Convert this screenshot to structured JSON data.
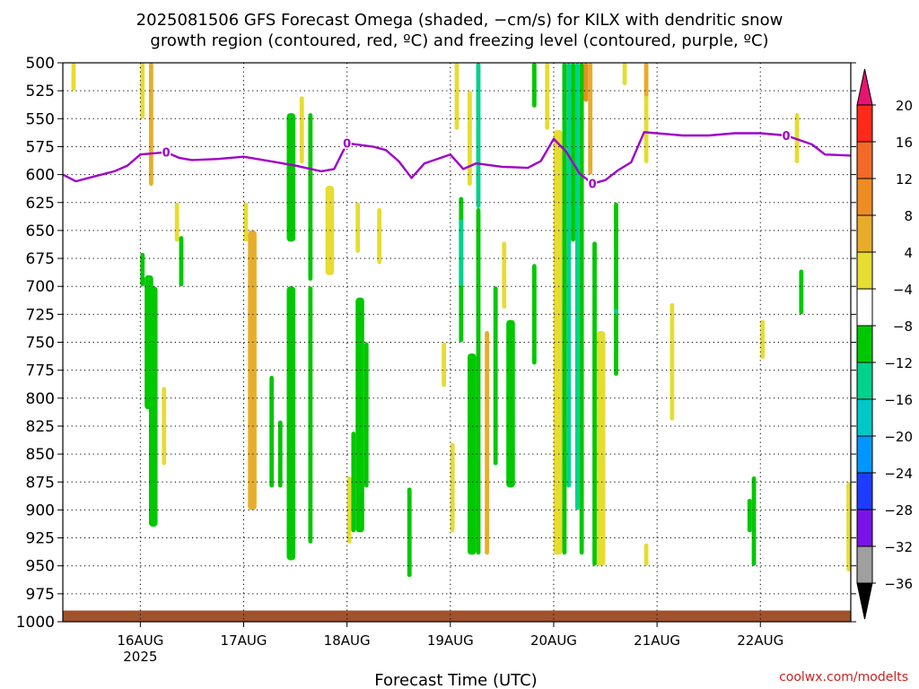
{
  "chart_data": {
    "type": "heatmap",
    "title_line1": "2025081506 GFS Forecast Omega (shaded, −cm/s) for KILX with dendritic snow",
    "title_line2": "growth region (contoured, red, ºC) and freezing level (contoured, purple, ºC)",
    "xlabel": "Forecast Time (UTC)",
    "ylabel": "",
    "credit": "coolwx.com/modelts",
    "y_ticks": [
      "500",
      "525",
      "550",
      "575",
      "600",
      "625",
      "650",
      "675",
      "700",
      "725",
      "750",
      "775",
      "800",
      "825",
      "850",
      "875",
      "900",
      "925",
      "950",
      "975",
      "1000"
    ],
    "y_range": [
      1000,
      500
    ],
    "x_start": "2025-08-15T06",
    "x_end": "2025-08-22T21",
    "x_ticks": [
      {
        "at": "2025-08-16T00",
        "label": "16AUG",
        "sublabel": "2025"
      },
      {
        "at": "2025-08-17T00",
        "label": "17AUG",
        "sublabel": ""
      },
      {
        "at": "2025-08-18T00",
        "label": "18AUG",
        "sublabel": ""
      },
      {
        "at": "2025-08-19T00",
        "label": "19AUG",
        "sublabel": ""
      },
      {
        "at": "2025-08-20T00",
        "label": "20AUG",
        "sublabel": ""
      },
      {
        "at": "2025-08-21T00",
        "label": "21AUG",
        "sublabel": ""
      },
      {
        "at": "2025-08-22T00",
        "label": "22AUG",
        "sublabel": ""
      }
    ],
    "grid": "dotted",
    "colorbar": {
      "labels": [
        "20",
        "16",
        "12",
        "8",
        "4",
        "−4",
        "−8",
        "−12",
        "−16",
        "−20",
        "−24",
        "−28",
        "−32",
        "−36"
      ],
      "colors": [
        "#ff2a1a",
        "#f36a28",
        "#ee8c24",
        "#e7ad2a",
        "#e6dc32",
        "#ffffff",
        "#00c800",
        "#00d28c",
        "#00c8c8",
        "#0096ff",
        "#1e3cff",
        "#7814e6",
        "#a000c8",
        "#a0a0a0"
      ],
      "top_arrow_color": "#e6146e",
      "bottom_arrow_color": "#000000"
    },
    "freezing_level": {
      "color": "#a000c8",
      "label": "0",
      "points": [
        [
          "2025-08-15T06",
          600
        ],
        [
          "2025-08-15T09",
          606
        ],
        [
          "2025-08-15T12",
          603
        ],
        [
          "2025-08-15T18",
          597
        ],
        [
          "2025-08-15T21",
          592
        ],
        [
          "2025-08-16T00",
          582
        ],
        [
          "2025-08-16T06",
          580
        ],
        [
          "2025-08-16T09",
          585
        ],
        [
          "2025-08-16T12",
          587
        ],
        [
          "2025-08-16T18",
          586
        ],
        [
          "2025-08-17T00",
          584
        ],
        [
          "2025-08-17T06",
          588
        ],
        [
          "2025-08-17T12",
          592
        ],
        [
          "2025-08-17T18",
          597
        ],
        [
          "2025-08-17T21",
          595
        ],
        [
          "2025-08-18T00",
          572
        ],
        [
          "2025-08-18T06",
          575
        ],
        [
          "2025-08-18T09",
          578
        ],
        [
          "2025-08-18T12",
          588
        ],
        [
          "2025-08-18T15",
          603
        ],
        [
          "2025-08-18T18",
          590
        ],
        [
          "2025-08-19T00",
          582
        ],
        [
          "2025-08-19T03",
          595
        ],
        [
          "2025-08-19T06",
          590
        ],
        [
          "2025-08-19T12",
          593
        ],
        [
          "2025-08-19T18",
          594
        ],
        [
          "2025-08-19T21",
          588
        ],
        [
          "2025-08-20T00",
          568
        ],
        [
          "2025-08-20T03",
          580
        ],
        [
          "2025-08-20T06",
          599
        ],
        [
          "2025-08-20T09",
          608
        ],
        [
          "2025-08-20T12",
          605
        ],
        [
          "2025-08-20T15",
          596
        ],
        [
          "2025-08-20T18",
          589
        ],
        [
          "2025-08-20T21",
          562
        ],
        [
          "2025-08-21T06",
          565
        ],
        [
          "2025-08-21T12",
          565
        ],
        [
          "2025-08-21T18",
          563
        ],
        [
          "2025-08-22T00",
          563
        ],
        [
          "2025-08-22T06",
          565
        ],
        [
          "2025-08-22T12",
          573
        ],
        [
          "2025-08-22T15",
          582
        ],
        [
          "2025-08-22T21",
          583
        ]
      ]
    },
    "omega_regions": [
      {
        "start": "2025-08-15T08",
        "end": "2025-08-15T09",
        "top": 500,
        "bottom": 525,
        "value": 4
      },
      {
        "start": "2025-08-16T00",
        "end": "2025-08-16T01",
        "top": 500,
        "bottom": 550,
        "value": 4
      },
      {
        "start": "2025-08-16T02",
        "end": "2025-08-16T03",
        "top": 500,
        "bottom": 610,
        "value": 8
      },
      {
        "start": "2025-08-16T00",
        "end": "2025-08-16T01",
        "top": 670,
        "bottom": 700,
        "value": -8
      },
      {
        "start": "2025-08-16T01",
        "end": "2025-08-16T03",
        "top": 690,
        "bottom": 810,
        "value": -8
      },
      {
        "start": "2025-08-16T02",
        "end": "2025-08-16T04",
        "top": 700,
        "bottom": 915,
        "value": -8
      },
      {
        "start": "2025-08-16T05",
        "end": "2025-08-16T06",
        "top": 790,
        "bottom": 860,
        "value": 4
      },
      {
        "start": "2025-08-16T08",
        "end": "2025-08-16T09",
        "top": 625,
        "bottom": 660,
        "value": 4
      },
      {
        "start": "2025-08-16T09",
        "end": "2025-08-16T10",
        "top": 655,
        "bottom": 700,
        "value": -8
      },
      {
        "start": "2025-08-17T00",
        "end": "2025-08-17T01",
        "top": 625,
        "bottom": 660,
        "value": 4
      },
      {
        "start": "2025-08-17T01",
        "end": "2025-08-17T03",
        "top": 650,
        "bottom": 900,
        "value": 8
      },
      {
        "start": "2025-08-17T06",
        "end": "2025-08-17T07",
        "top": 780,
        "bottom": 880,
        "value": -8
      },
      {
        "start": "2025-08-17T08",
        "end": "2025-08-17T09",
        "top": 820,
        "bottom": 880,
        "value": -8
      },
      {
        "start": "2025-08-17T10",
        "end": "2025-08-17T12",
        "top": 545,
        "bottom": 660,
        "value": -8
      },
      {
        "start": "2025-08-17T10",
        "end": "2025-08-17T12",
        "top": 700,
        "bottom": 945,
        "value": -8
      },
      {
        "start": "2025-08-17T13",
        "end": "2025-08-17T14",
        "top": 530,
        "bottom": 590,
        "value": 4
      },
      {
        "start": "2025-08-17T15",
        "end": "2025-08-17T16",
        "top": 545,
        "bottom": 695,
        "value": -8
      },
      {
        "start": "2025-08-17T15",
        "end": "2025-08-17T16",
        "top": 700,
        "bottom": 930,
        "value": -8
      },
      {
        "start": "2025-08-17T19",
        "end": "2025-08-17T21",
        "top": 610,
        "bottom": 690,
        "value": 4
      },
      {
        "start": "2025-08-18T00",
        "end": "2025-08-18T01",
        "top": 870,
        "bottom": 930,
        "value": 4
      },
      {
        "start": "2025-08-18T01",
        "end": "2025-08-18T02",
        "top": 830,
        "bottom": 920,
        "value": -8
      },
      {
        "start": "2025-08-18T02",
        "end": "2025-08-18T04",
        "top": 710,
        "bottom": 920,
        "value": -8
      },
      {
        "start": "2025-08-18T04",
        "end": "2025-08-18T05",
        "top": 750,
        "bottom": 880,
        "value": -8
      },
      {
        "start": "2025-08-18T02",
        "end": "2025-08-18T03",
        "top": 625,
        "bottom": 670,
        "value": 4
      },
      {
        "start": "2025-08-18T07",
        "end": "2025-08-18T08",
        "top": 630,
        "bottom": 680,
        "value": 4
      },
      {
        "start": "2025-08-18T14",
        "end": "2025-08-18T15",
        "top": 880,
        "bottom": 960,
        "value": -8
      },
      {
        "start": "2025-08-18T22",
        "end": "2025-08-18T23",
        "top": 750,
        "bottom": 790,
        "value": 4
      },
      {
        "start": "2025-08-19T00",
        "end": "2025-08-19T01",
        "top": 840,
        "bottom": 920,
        "value": 4
      },
      {
        "start": "2025-08-19T01",
        "end": "2025-08-19T02",
        "top": 500,
        "bottom": 560,
        "value": 4
      },
      {
        "start": "2025-08-19T02",
        "end": "2025-08-19T03",
        "top": 620,
        "bottom": 750,
        "value": -8
      },
      {
        "start": "2025-08-19T02",
        "end": "2025-08-19T03",
        "top": 640,
        "bottom": 700,
        "value": -12
      },
      {
        "start": "2025-08-19T04",
        "end": "2025-08-19T05",
        "top": 525,
        "bottom": 610,
        "value": 4
      },
      {
        "start": "2025-08-19T04",
        "end": "2025-08-19T06",
        "top": 760,
        "bottom": 940,
        "value": -8
      },
      {
        "start": "2025-08-19T06",
        "end": "2025-08-19T07",
        "top": 500,
        "bottom": 630,
        "value": -12
      },
      {
        "start": "2025-08-19T06",
        "end": "2025-08-19T07",
        "top": 630,
        "bottom": 940,
        "value": -8
      },
      {
        "start": "2025-08-19T08",
        "end": "2025-08-19T09",
        "top": 740,
        "bottom": 940,
        "value": 8
      },
      {
        "start": "2025-08-19T10",
        "end": "2025-08-19T11",
        "top": 700,
        "bottom": 860,
        "value": -8
      },
      {
        "start": "2025-08-19T12",
        "end": "2025-08-19T13",
        "top": 660,
        "bottom": 720,
        "value": 4
      },
      {
        "start": "2025-08-19T13",
        "end": "2025-08-19T15",
        "top": 730,
        "bottom": 880,
        "value": -8
      },
      {
        "start": "2025-08-19T19",
        "end": "2025-08-19T20",
        "top": 500,
        "bottom": 540,
        "value": -8
      },
      {
        "start": "2025-08-19T19",
        "end": "2025-08-19T20",
        "top": 680,
        "bottom": 770,
        "value": -8
      },
      {
        "start": "2025-08-19T22",
        "end": "2025-08-19T23",
        "top": 500,
        "bottom": 560,
        "value": 4
      },
      {
        "start": "2025-08-20T00",
        "end": "2025-08-20T02",
        "top": 560,
        "bottom": 940,
        "value": 4
      },
      {
        "start": "2025-08-20T02",
        "end": "2025-08-20T03",
        "top": 500,
        "bottom": 940,
        "value": -8
      },
      {
        "start": "2025-08-20T03",
        "end": "2025-08-20T04",
        "top": 500,
        "bottom": 880,
        "value": -12
      },
      {
        "start": "2025-08-20T04",
        "end": "2025-08-20T05",
        "top": 500,
        "bottom": 660,
        "value": -8
      },
      {
        "start": "2025-08-20T05",
        "end": "2025-08-20T06",
        "top": 500,
        "bottom": 900,
        "value": -12
      },
      {
        "start": "2025-08-20T06",
        "end": "2025-08-20T07",
        "top": 500,
        "bottom": 940,
        "value": -8
      },
      {
        "start": "2025-08-20T07",
        "end": "2025-08-20T08",
        "top": 500,
        "bottom": 535,
        "value": 12
      },
      {
        "start": "2025-08-20T08",
        "end": "2025-08-20T09",
        "top": 500,
        "bottom": 600,
        "value": 8
      },
      {
        "start": "2025-08-20T09",
        "end": "2025-08-20T10",
        "top": 660,
        "bottom": 950,
        "value": -8
      },
      {
        "start": "2025-08-20T10",
        "end": "2025-08-20T12",
        "top": 740,
        "bottom": 950,
        "value": 4
      },
      {
        "start": "2025-08-20T14",
        "end": "2025-08-20T15",
        "top": 625,
        "bottom": 780,
        "value": -8
      },
      {
        "start": "2025-08-20T14",
        "end": "2025-08-20T15",
        "top": 720,
        "bottom": 725,
        "value": -12
      },
      {
        "start": "2025-08-20T16",
        "end": "2025-08-20T17",
        "top": 500,
        "bottom": 520,
        "value": 4
      },
      {
        "start": "2025-08-20T21",
        "end": "2025-08-20T22",
        "top": 500,
        "bottom": 590,
        "value": 4
      },
      {
        "start": "2025-08-20T21",
        "end": "2025-08-20T22",
        "top": 500,
        "bottom": 530,
        "value": 8
      },
      {
        "start": "2025-08-20T21",
        "end": "2025-08-20T22",
        "top": 930,
        "bottom": 950,
        "value": 4
      },
      {
        "start": "2025-08-21T03",
        "end": "2025-08-21T04",
        "top": 715,
        "bottom": 820,
        "value": 4
      },
      {
        "start": "2025-08-21T21",
        "end": "2025-08-21T22",
        "top": 890,
        "bottom": 920,
        "value": -8
      },
      {
        "start": "2025-08-21T22",
        "end": "2025-08-21T23",
        "top": 870,
        "bottom": 950,
        "value": -8
      },
      {
        "start": "2025-08-22T00",
        "end": "2025-08-22T01",
        "top": 730,
        "bottom": 765,
        "value": 4
      },
      {
        "start": "2025-08-22T08",
        "end": "2025-08-22T09",
        "top": 545,
        "bottom": 590,
        "value": 4
      },
      {
        "start": "2025-08-22T09",
        "end": "2025-08-22T10",
        "top": 685,
        "bottom": 725,
        "value": -8
      },
      {
        "start": "2025-08-22T20",
        "end": "2025-08-22T21",
        "top": 875,
        "bottom": 955,
        "value": 4
      }
    ],
    "surface_band": {
      "color": "#a0522d",
      "top": 990,
      "bottom": 1000
    }
  }
}
